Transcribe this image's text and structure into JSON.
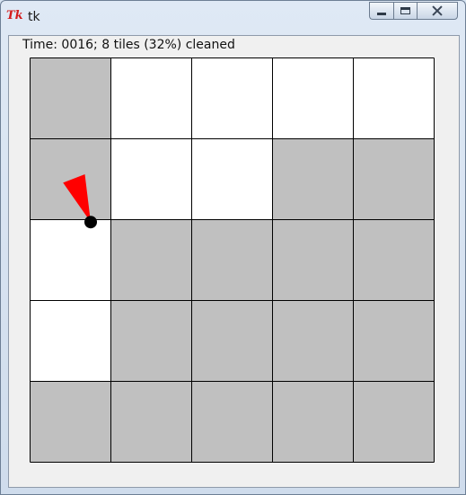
{
  "window": {
    "title": "tk",
    "logo_text": "Tk"
  },
  "status": {
    "text": "Time: 0016; 8 tiles (32%) cleaned"
  },
  "room": {
    "cols": 5,
    "rows": 5,
    "clean_color": "#ffffff",
    "dirty_color": "#c0c0c0",
    "grid_color": "#000000",
    "tiles": [
      [
        "dirty",
        "clean",
        "clean",
        "clean",
        "clean"
      ],
      [
        "dirty",
        "clean",
        "clean",
        "dirty",
        "dirty"
      ],
      [
        "clean",
        "dirty",
        "dirty",
        "dirty",
        "dirty"
      ],
      [
        "clean",
        "dirty",
        "dirty",
        "dirty",
        "dirty"
      ],
      [
        "dirty",
        "dirty",
        "dirty",
        "dirty",
        "dirty"
      ]
    ]
  },
  "robot": {
    "x": 0.75,
    "y": 2.03,
    "heading_deg": 339,
    "body_color": "#000000",
    "heading_color": "#ff0000"
  },
  "icons": {
    "minimize": "minimize-icon",
    "maximize": "maximize-icon",
    "close": "close-icon"
  }
}
